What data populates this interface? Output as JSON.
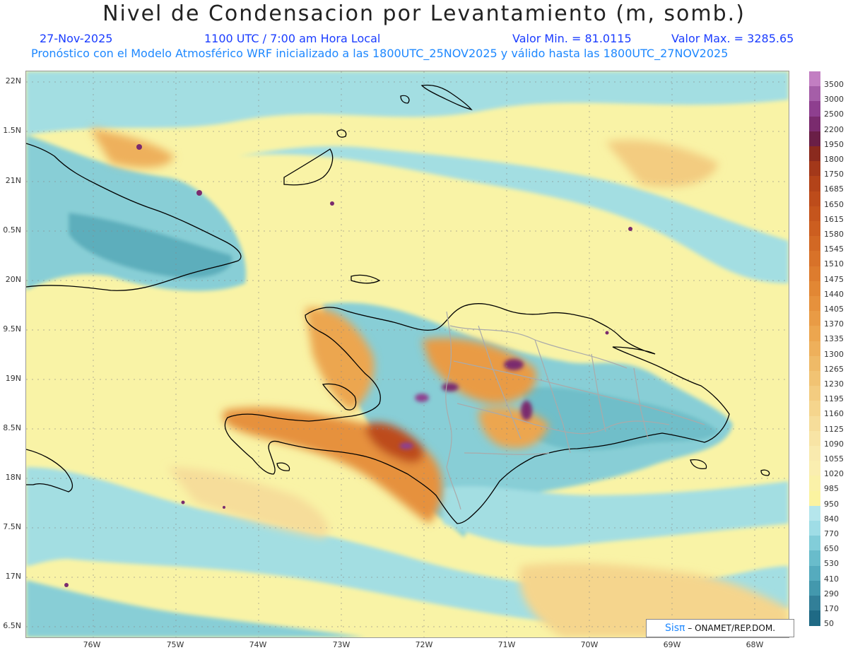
{
  "header": {
    "title": "Nivel de Condensacion por Levantamiento (m, somb.)",
    "date": "27-Nov-2025",
    "time": "1100 UTC / 7:00 am Hora Local",
    "vmin": "Valor Min. = 81.0115",
    "vmax": "Valor Max. = 3285.65",
    "forecast": "Pronóstico con el Modelo Atmosférico WRF inicializado a las 1800UTC_25NOV2025 y válido hasta las  1800UTC_27NOV2025"
  },
  "axes": {
    "lat_labels": [
      "22N",
      "1.5N",
      "21N",
      "0.5N",
      "20N",
      "9.5N",
      "19N",
      "8.5N",
      "18N",
      "7.5N",
      "17N",
      "6.5N"
    ],
    "lon_labels": [
      "76W",
      "75W",
      "74W",
      "73W",
      "72W",
      "71W",
      "70W",
      "69W",
      "68W"
    ]
  },
  "colorbar": {
    "labels": [
      "3500",
      "3000",
      "2500",
      "2200",
      "1950",
      "1800",
      "1750",
      "1685",
      "1650",
      "1615",
      "1580",
      "1545",
      "1510",
      "1475",
      "1440",
      "1405",
      "1370",
      "1335",
      "1300",
      "1265",
      "1230",
      "1195",
      "1160",
      "1125",
      "1090",
      "1055",
      "1020",
      "985",
      "950",
      "840",
      "770",
      "650",
      "530",
      "410",
      "290",
      "170",
      "50"
    ],
    "colors": [
      "#c27ec2",
      "#a55ea8",
      "#8e3f8f",
      "#7a2b6e",
      "#6a1f47",
      "#8a2a1e",
      "#a3381a",
      "#b34319",
      "#bd4c1b",
      "#c5551d",
      "#cc5e20",
      "#d26824",
      "#d87229",
      "#dd7c2e",
      "#e28734",
      "#e6913c",
      "#e99b45",
      "#eca64f",
      "#eeb05b",
      "#efba67",
      "#f1c373",
      "#f3cc80",
      "#f5d58d",
      "#f6dd9a",
      "#f8e4a5",
      "#f9eaae",
      "#faeeb0",
      "#faf1a8",
      "#fbf3a0",
      "#b5e6ec",
      "#9fdde6",
      "#82cdd9",
      "#69bccb",
      "#55abbe",
      "#4398ad",
      "#327f98",
      "#1f6a85"
    ]
  },
  "credit": {
    "sis": "Sisπ",
    "text": "– ONAMET/REP.DOM."
  }
}
